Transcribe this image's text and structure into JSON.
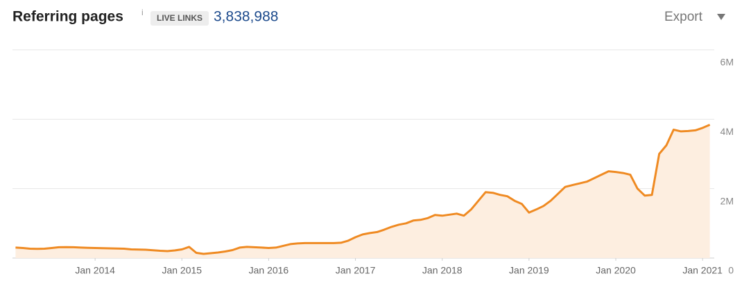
{
  "chart_data": {
    "type": "line",
    "title": "Referring pages",
    "info_icon": "i",
    "badge": "LIVE LINKS",
    "live_count": "3,838,988",
    "export": "Export",
    "x": [
      "2013-02",
      "2013-03",
      "2013-04",
      "2013-05",
      "2013-06",
      "2013-07",
      "2013-08",
      "2013-09",
      "2013-10",
      "2013-11",
      "2013-12",
      "2014-01",
      "2014-02",
      "2014-03",
      "2014-04",
      "2014-05",
      "2014-06",
      "2014-07",
      "2014-08",
      "2014-09",
      "2014-10",
      "2014-11",
      "2014-12",
      "2015-01",
      "2015-02",
      "2015-03",
      "2015-04",
      "2015-05",
      "2015-06",
      "2015-07",
      "2015-08",
      "2015-09",
      "2015-10",
      "2015-11",
      "2015-12",
      "2016-01",
      "2016-02",
      "2016-03",
      "2016-04",
      "2016-05",
      "2016-06",
      "2016-07",
      "2016-08",
      "2016-09",
      "2016-10",
      "2016-11",
      "2016-12",
      "2017-01",
      "2017-02",
      "2017-03",
      "2017-04",
      "2017-05",
      "2017-06",
      "2017-07",
      "2017-08",
      "2017-09",
      "2017-10",
      "2017-11",
      "2017-12",
      "2018-01",
      "2018-02",
      "2018-03",
      "2018-04",
      "2018-05",
      "2018-06",
      "2018-07",
      "2018-08",
      "2018-09",
      "2018-10",
      "2018-11",
      "2018-12",
      "2019-01",
      "2019-02",
      "2019-03",
      "2019-04",
      "2019-05",
      "2019-06",
      "2019-07",
      "2019-08",
      "2019-09",
      "2019-10",
      "2019-11",
      "2019-12",
      "2020-01",
      "2020-02",
      "2020-03",
      "2020-04",
      "2020-05",
      "2020-06",
      "2020-07",
      "2020-08",
      "2020-09",
      "2020-10",
      "2020-11",
      "2020-12",
      "2021-01",
      "2021-02"
    ],
    "series": [
      {
        "color": "#ef8a22",
        "fill": "#fdeee0",
        "values": [
          300000,
          290000,
          270000,
          265000,
          270000,
          290000,
          310000,
          315000,
          310000,
          300000,
          295000,
          290000,
          285000,
          280000,
          275000,
          270000,
          250000,
          245000,
          240000,
          225000,
          210000,
          200000,
          220000,
          250000,
          320000,
          150000,
          120000,
          140000,
          160000,
          190000,
          230000,
          300000,
          320000,
          310000,
          300000,
          290000,
          300000,
          350000,
          400000,
          420000,
          430000,
          430000,
          430000,
          430000,
          430000,
          440000,
          500000,
          600000,
          680000,
          720000,
          750000,
          820000,
          900000,
          960000,
          1000000,
          1080000,
          1100000,
          1150000,
          1240000,
          1220000,
          1250000,
          1280000,
          1220000,
          1400000,
          1650000,
          1900000,
          1880000,
          1820000,
          1780000,
          1650000,
          1560000,
          1310000,
          1400000,
          1500000,
          1650000,
          1850000,
          2050000,
          2100000,
          2150000,
          2200000,
          2300000,
          2400000,
          2500000,
          2480000,
          2450000,
          2400000,
          2000000,
          1800000,
          1820000,
          3000000,
          3250000,
          3700000,
          3650000,
          3660000,
          3680000,
          3750000,
          3840000
        ]
      }
    ],
    "xlim": [
      "2013-01",
      "2021-03"
    ],
    "xticks": [
      {
        "value": "2014-01",
        "label": "Jan 2014"
      },
      {
        "value": "2015-01",
        "label": "Jan 2015"
      },
      {
        "value": "2016-01",
        "label": "Jan 2016"
      },
      {
        "value": "2017-01",
        "label": "Jan 2017"
      },
      {
        "value": "2018-01",
        "label": "Jan 2018"
      },
      {
        "value": "2019-01",
        "label": "Jan 2019"
      },
      {
        "value": "2020-01",
        "label": "Jan 2020"
      },
      {
        "value": "2021-01",
        "label": "Jan 2021"
      }
    ],
    "ylim": [
      0,
      6000000
    ],
    "yticks": [
      0,
      {
        "value": 2000000,
        "label": "2M"
      },
      {
        "value": 4000000,
        "label": "4M"
      },
      {
        "value": 6000000,
        "label": "6M"
      }
    ],
    "grid": true
  }
}
